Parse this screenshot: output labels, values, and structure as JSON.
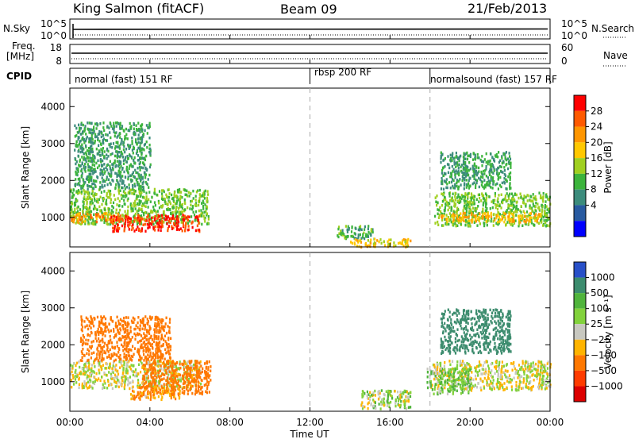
{
  "header": {
    "title_left": "King Salmon (fitACF)",
    "title_mid": "Beam 09",
    "title_right": "21/Feb/2013"
  },
  "noise_panel": {
    "left_label": "N.Sky",
    "left_ticks": [
      "10^5",
      "10^0"
    ],
    "right_ticks": [
      "10^5",
      "10^0"
    ],
    "right_label": "N.Search"
  },
  "freq_panel": {
    "left_label_1": "Freq.",
    "left_label_2": "[MHz]",
    "left_ticks": [
      "18",
      "8"
    ],
    "right_ticks": [
      "60",
      "0"
    ],
    "right_label": "Nave"
  },
  "cpid_panel": {
    "label": "CPID",
    "modes": [
      {
        "name": "normal (fast) 151 RF",
        "start_hour": 0
      },
      {
        "name": "rbsp 200 RF",
        "start_hour": 12
      },
      {
        "name": "normalsound (fast) 157 RF",
        "start_hour": 18
      }
    ]
  },
  "x_axis": {
    "label": "Time UT",
    "ticks": [
      "00:00",
      "04:00",
      "08:00",
      "12:00",
      "16:00",
      "20:00",
      "00:00"
    ]
  },
  "power_colorbar": {
    "label": "Power [dB]",
    "ticks": [
      "28",
      "24",
      "20",
      "16",
      "12",
      "8",
      "4"
    ],
    "colors": [
      "#ff0000",
      "#ff5a00",
      "#ff9600",
      "#ffc800",
      "#a0d020",
      "#3cb43c",
      "#3c8c7c",
      "#285aa0",
      "#0000ff"
    ]
  },
  "velocity_colorbar": {
    "label": "Velocity [m s⁻¹]",
    "ticks": [
      "1000",
      "500",
      "100",
      "25",
      "−25",
      "−100",
      "−500",
      "−1000"
    ],
    "colors": [
      "#2850c8",
      "#3c8c6e",
      "#50b43c",
      "#82d23c",
      "#c8c8c0",
      "#ffb400",
      "#ff7800",
      "#ff3c00",
      "#dc0000"
    ]
  },
  "chart_data": [
    {
      "type": "heatmap",
      "name": "power",
      "xlabel": "Time UT",
      "ylabel": "Slant Range [km]",
      "xlim": [
        0,
        24
      ],
      "ylim": [
        200,
        4500
      ],
      "yticks": [
        "1000",
        "2000",
        "3000",
        "4000"
      ],
      "colorbar": "Power [dB]",
      "patches": [
        {
          "t0": 0.0,
          "t1": 6.9,
          "r0": 850,
          "r1": 1800,
          "level": 10
        },
        {
          "t0": 0.0,
          "t1": 2.5,
          "r0": 900,
          "r1": 1150,
          "level": 20
        },
        {
          "t0": 2.0,
          "t1": 6.5,
          "r0": 650,
          "r1": 1100,
          "level": 26
        },
        {
          "t0": 0.2,
          "t1": 4.0,
          "r0": 1800,
          "r1": 3600,
          "level": 6
        },
        {
          "t0": 13.3,
          "t1": 15.2,
          "r0": 450,
          "r1": 800,
          "level": 7
        },
        {
          "t0": 14.0,
          "t1": 17.0,
          "r0": 230,
          "r1": 450,
          "level": 16
        },
        {
          "t0": 18.2,
          "t1": 24.0,
          "r0": 800,
          "r1": 1700,
          "level": 10
        },
        {
          "t0": 18.5,
          "t1": 23.5,
          "r0": 900,
          "r1": 1150,
          "level": 18
        },
        {
          "t0": 18.5,
          "t1": 22.0,
          "r0": 1800,
          "r1": 2800,
          "level": 6
        }
      ]
    },
    {
      "type": "heatmap",
      "name": "velocity",
      "xlabel": "Time UT",
      "ylabel": "Slant Range [km]",
      "xlim": [
        0,
        24
      ],
      "ylim": [
        200,
        4500
      ],
      "yticks": [
        "1000",
        "2000",
        "3000",
        "4000"
      ],
      "colorbar": "Velocity [m s⁻¹]",
      "patches": [
        {
          "t0": 0.0,
          "t1": 6.5,
          "r0": 850,
          "r1": 1600,
          "level": 0
        },
        {
          "t0": 3.5,
          "t1": 7.0,
          "r0": 700,
          "r1": 1600,
          "level": -400
        },
        {
          "t0": 3.0,
          "t1": 5.5,
          "r0": 550,
          "r1": 900,
          "level": -120
        },
        {
          "t0": 0.5,
          "t1": 5.0,
          "r0": 1600,
          "r1": 2800,
          "level": -300
        },
        {
          "t0": 14.5,
          "t1": 17.0,
          "r0": 300,
          "r1": 800,
          "level": 50
        },
        {
          "t0": 18.0,
          "t1": 24.0,
          "r0": 800,
          "r1": 1600,
          "level": 0
        },
        {
          "t0": 17.8,
          "t1": 20.0,
          "r0": 700,
          "r1": 1400,
          "level": 90
        },
        {
          "t0": 18.5,
          "t1": 22.0,
          "r0": 1800,
          "r1": 3000,
          "level": 600
        }
      ]
    }
  ]
}
